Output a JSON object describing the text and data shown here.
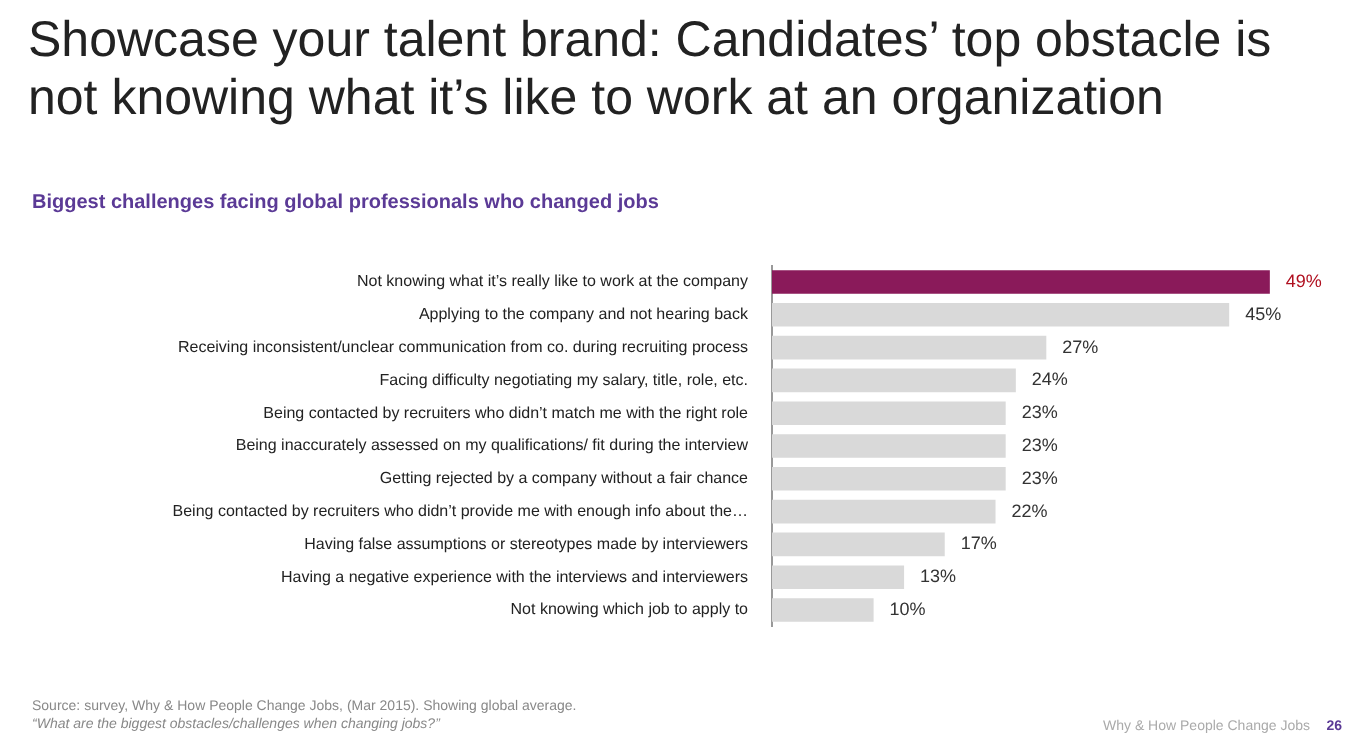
{
  "chart_data": {
    "type": "bar",
    "orientation": "horizontal",
    "title": "Showcase your talent brand: Candidates’ top obstacle is not knowing what it’s like to work at an organization",
    "subtitle": "Biggest challenges facing global professionals who changed jobs",
    "categories": [
      "Not knowing what it’s really like to work at the company",
      "Applying to the company and not hearing back",
      "Receiving inconsistent/unclear communication from co. during recruiting process",
      "Facing difficulty negotiating my salary, title, role, etc.",
      "Being contacted by recruiters who didn’t match me with the right role",
      "Being inaccurately assessed on my qualifications/ fit during the interview",
      "Getting rejected by a company without a fair chance",
      "Being contacted by recruiters who didn’t provide me with enough info about the…",
      "Having false assumptions or stereotypes made by interviewers",
      "Having a negative experience with the interviews and interviewers",
      "Not knowing which job to apply to"
    ],
    "values": [
      49,
      45,
      27,
      24,
      23,
      23,
      23,
      22,
      17,
      13,
      10
    ],
    "colors": [
      "#8a1a5a",
      "#d9d9d9",
      "#d9d9d9",
      "#d9d9d9",
      "#d9d9d9",
      "#d9d9d9",
      "#d9d9d9",
      "#d9d9d9",
      "#d9d9d9",
      "#d9d9d9",
      "#d9d9d9"
    ],
    "value_labels": [
      "49%",
      "45%",
      "27%",
      "24%",
      "23%",
      "23%",
      "23%",
      "22%",
      "17%",
      "13%",
      "10%"
    ],
    "tick_labels": "y",
    "legend": false,
    "annotations": [
      "Source: survey, Why & How People Change Jobs, (Mar 2015). Showing global average.",
      "“What are the biggest obstacles/challenges when changing jobs?”",
      "Why & How People Change Jobs",
      "26"
    ]
  }
}
